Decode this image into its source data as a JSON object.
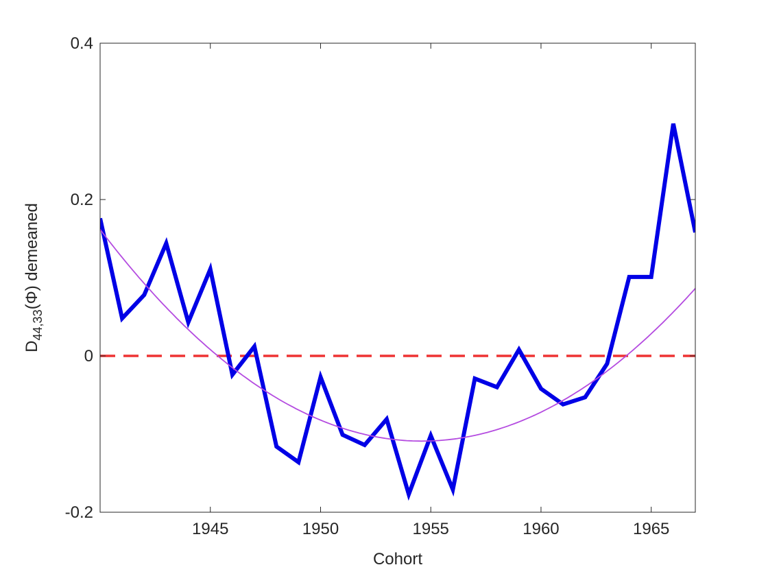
{
  "chart_data": {
    "type": "line",
    "xlabel": "Cohort",
    "ylabel": {
      "base": "D",
      "subscript": "44,33",
      "suffix": "(Φ) demeaned"
    },
    "xlim": [
      1940,
      1967
    ],
    "ylim": [
      -0.2,
      0.4
    ],
    "xticks": [
      1945,
      1950,
      1955,
      1960,
      1965
    ],
    "yticks": [
      -0.2,
      0,
      0.2,
      0.4
    ],
    "ytick_labels": [
      "-0.2",
      "0",
      "0.2",
      "0.4"
    ],
    "grid": false,
    "series": [
      {
        "style": "solid-thick",
        "color": "#0000e6",
        "x": [
          1940,
          1941,
          1942,
          1943,
          1944,
          1945,
          1946,
          1947,
          1948,
          1949,
          1950,
          1951,
          1952,
          1953,
          1954,
          1955,
          1956,
          1957,
          1958,
          1959,
          1960,
          1961,
          1962,
          1963,
          1964,
          1965,
          1966,
          1967
        ],
        "values": [
          0.176,
          0.048,
          0.078,
          0.144,
          0.043,
          0.111,
          -0.024,
          0.012,
          -0.116,
          -0.136,
          -0.027,
          -0.101,
          -0.114,
          -0.081,
          -0.177,
          -0.102,
          -0.171,
          -0.029,
          -0.04,
          0.008,
          -0.042,
          -0.062,
          -0.053,
          -0.01,
          0.101,
          0.101,
          0.297,
          0.158
        ]
      },
      {
        "style": "quadratic-fit",
        "color": "#b44be0",
        "coefficients": {
          "vertex_x": 1954.6,
          "vertex_y": -0.109,
          "curvature": 0.00127
        }
      },
      {
        "style": "dashed-zero",
        "color": "#ee3333",
        "y": 0
      }
    ]
  }
}
